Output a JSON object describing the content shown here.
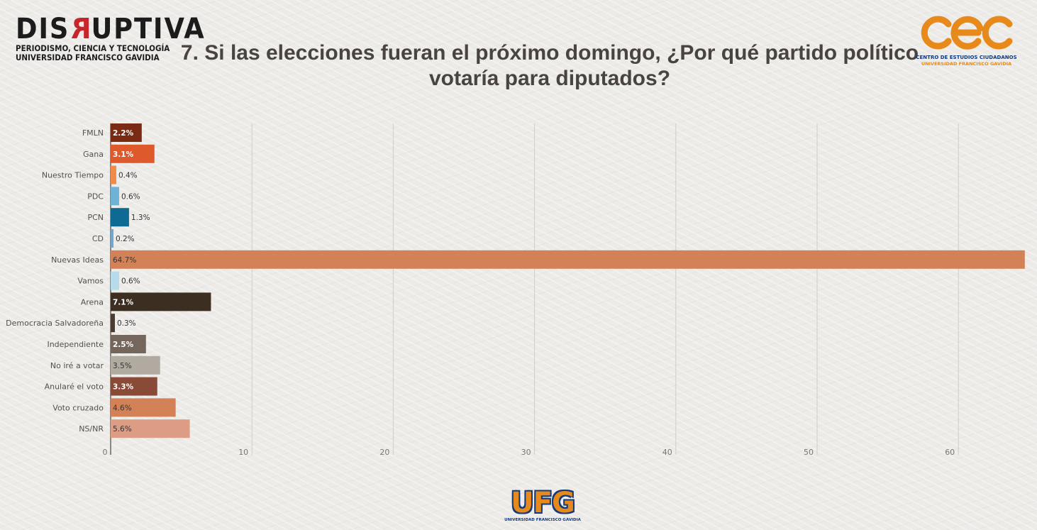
{
  "header": {
    "brand_left": {
      "wordmark_pre": "DIS",
      "wordmark_r": "R",
      "wordmark_post": "UPTIVA",
      "line1": "PERIODISMO, CIENCIA Y TECNOLOGÍA",
      "line2": "UNIVERSIDAD FRANCISCO GAVIDIA"
    },
    "brand_right": {
      "mark": "cec",
      "line1": "CENTRO DE ESTUDIOS CIUDADANOS",
      "line2": "UNIVERSIDAD FRANCISCO GAVIDIA"
    },
    "title": "7. Si las elecciones fueran el próximo domingo, ¿Por qué partido político votaría para diputados?"
  },
  "footer": {
    "logo_text": "UFG",
    "logo_sub": "UNIVERSIDAD FRANCISCO GAVIDIA"
  },
  "colors": {
    "brand_orange": "#e8891c",
    "brand_navy": "#133a7a",
    "brand_red": "#c8242b",
    "title": "#4a4440",
    "axis_text": "#7a7570",
    "gridline": "#cfccc8"
  },
  "chart_data": {
    "type": "bar",
    "orientation": "horizontal",
    "title": "7. Si las elecciones fueran el próximo domingo, ¿Por qué partido político votaría para diputados?",
    "xlabel": "",
    "ylabel": "",
    "xlim": [
      0,
      65
    ],
    "xticks": [
      0,
      10,
      20,
      30,
      40,
      50,
      60
    ],
    "grid": true,
    "categories": [
      "FMLN",
      "Gana",
      "Nuestro Tiempo",
      "PDC",
      "PCN",
      "CD",
      "Nuevas Ideas",
      "Vamos",
      "Arena",
      "Democracia Salvadoreña",
      "Independiente",
      "No iré a votar",
      "Anularé el voto",
      "Voto cruzado",
      "NS/NR"
    ],
    "values": [
      2.2,
      3.1,
      0.4,
      0.6,
      1.3,
      0.2,
      64.7,
      0.6,
      7.1,
      0.3,
      2.5,
      3.5,
      3.3,
      4.6,
      5.6
    ],
    "data_labels": [
      "2.2%",
      "3.1%",
      "0.4%",
      "0.6%",
      "1.3%",
      "0.2%",
      "64.7%",
      "0.6%",
      "7.1%",
      "0.3%",
      "2.5%",
      "3.5%",
      "3.3%",
      "4.6%",
      "5.6%"
    ],
    "colors": [
      "#7a2a12",
      "#de5a2c",
      "#f08c4a",
      "#6eb2d6",
      "#0e6a93",
      "#6ea8cf",
      "#d38258",
      "#b6dceb",
      "#3d2e22",
      "#4b3b30",
      "#75665c",
      "#b1aaa1",
      "#8a4a38",
      "#d38258",
      "#dd9c84"
    ],
    "label_colors": [
      "#ffffff",
      "#ffffff",
      "#333333",
      "#333333",
      "#333333",
      "#333333",
      "#333333",
      "#333333",
      "#ffffff",
      "#333333",
      "#ffffff",
      "#333333",
      "#ffffff",
      "#333333",
      "#333333"
    ]
  }
}
